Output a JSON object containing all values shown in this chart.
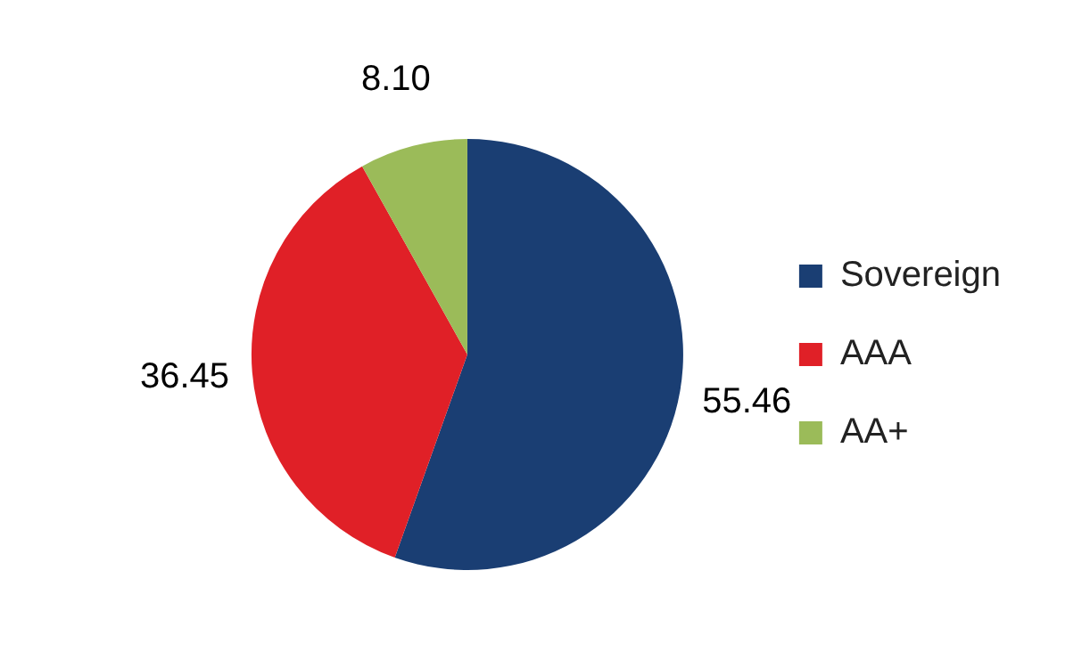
{
  "chart_data": {
    "type": "pie",
    "categories": [
      "Sovereign",
      "AAA",
      "AA+"
    ],
    "values": [
      55.46,
      36.45,
      8.1
    ],
    "colors": [
      "#1a3e73",
      "#e02027",
      "#9bbb59"
    ],
    "value_labels": [
      "55.46",
      "36.45",
      "8.10"
    ],
    "legend": "right"
  }
}
